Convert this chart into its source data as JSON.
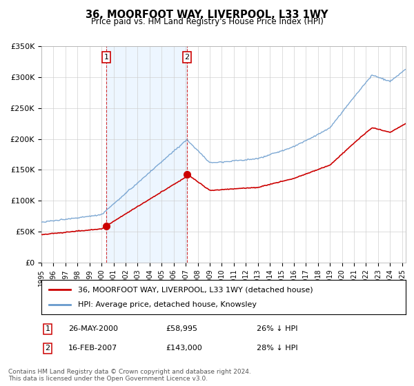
{
  "title": "36, MOORFOOT WAY, LIVERPOOL, L33 1WY",
  "subtitle": "Price paid vs. HM Land Registry's House Price Index (HPI)",
  "legend_line1": "36, MOORFOOT WAY, LIVERPOOL, L33 1WY (detached house)",
  "legend_line2": "HPI: Average price, detached house, Knowsley",
  "footer": "Contains HM Land Registry data © Crown copyright and database right 2024.\nThis data is licensed under the Open Government Licence v3.0.",
  "sale1_label": "1",
  "sale1_date": "26-MAY-2000",
  "sale1_price": "£58,995",
  "sale1_pct": "26% ↓ HPI",
  "sale2_label": "2",
  "sale2_date": "16-FEB-2007",
  "sale2_price": "£143,000",
  "sale2_pct": "28% ↓ HPI",
  "red_color": "#cc0000",
  "blue_color": "#6699cc",
  "shade_color": "#ddeeff",
  "grid_color": "#cccccc",
  "ylim": [
    0,
    350000
  ],
  "yticks": [
    0,
    50000,
    100000,
    150000,
    200000,
    250000,
    300000,
    350000
  ],
  "ytick_labels": [
    "£0",
    "£50K",
    "£100K",
    "£150K",
    "£200K",
    "£250K",
    "£300K",
    "£350K"
  ],
  "sale1_year": 2000.4,
  "sale1_value": 58995,
  "sale2_year": 2007.1,
  "sale2_value": 143000,
  "xlim_start": 1995,
  "xlim_end": 2025.3
}
